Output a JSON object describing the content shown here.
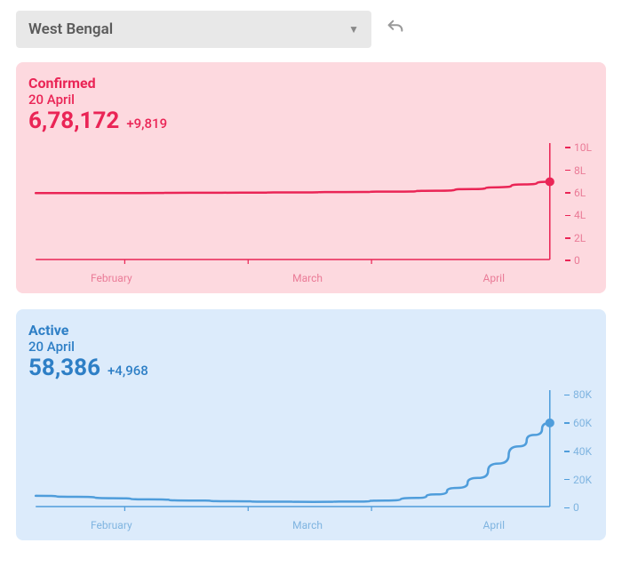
{
  "dropdown": {
    "label": "West Bengal"
  },
  "charts": [
    {
      "id": "confirmed",
      "type": "line",
      "title": "Confirmed",
      "date": "20 April",
      "value": "6,78,172",
      "delta": "+9,819",
      "bg_color": "#fdd9df",
      "line_color": "#ea2556",
      "text_color": "#ea2556",
      "label_color": "#ea7b97",
      "marker_radius": 5,
      "line_width": 2.5,
      "x_labels": [
        "February",
        "March",
        "April"
      ],
      "y_labels": [
        "10L",
        "8L",
        "6L",
        "4L",
        "2L",
        "0"
      ],
      "ylim": [
        0,
        1000000
      ],
      "points": [
        [
          0,
          580000
        ],
        [
          10,
          580000
        ],
        [
          20,
          580000
        ],
        [
          30,
          582000
        ],
        [
          40,
          583000
        ],
        [
          50,
          585000
        ],
        [
          60,
          588000
        ],
        [
          70,
          592000
        ],
        [
          78,
          600000
        ],
        [
          85,
          615000
        ],
        [
          90,
          630000
        ],
        [
          95,
          655000
        ],
        [
          100,
          678172
        ]
      ]
    },
    {
      "id": "active",
      "type": "line",
      "title": "Active",
      "date": "20 April",
      "value": "58,386",
      "delta": "+4,968",
      "bg_color": "#dcebfb",
      "line_color": "#4f9ddb",
      "text_color": "#2e7fc6",
      "label_color": "#7fb4e0",
      "marker_radius": 5,
      "line_width": 2.5,
      "x_labels": [
        "February",
        "March",
        "April"
      ],
      "y_labels": [
        "80K",
        "60K",
        "40K",
        "20K",
        "0"
      ],
      "ylim": [
        0,
        80000
      ],
      "points": [
        [
          0,
          7500
        ],
        [
          8,
          6800
        ],
        [
          15,
          5800
        ],
        [
          22,
          5000
        ],
        [
          30,
          4200
        ],
        [
          38,
          3700
        ],
        [
          46,
          3400
        ],
        [
          54,
          3300
        ],
        [
          62,
          3500
        ],
        [
          68,
          4200
        ],
        [
          74,
          6000
        ],
        [
          78,
          8500
        ],
        [
          82,
          13000
        ],
        [
          86,
          20000
        ],
        [
          90,
          30000
        ],
        [
          94,
          42000
        ],
        [
          97,
          50000
        ],
        [
          100,
          58386
        ]
      ]
    }
  ]
}
